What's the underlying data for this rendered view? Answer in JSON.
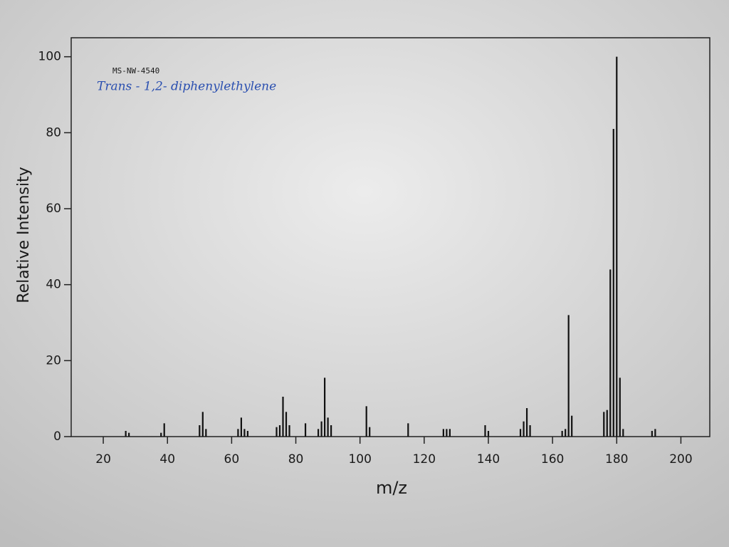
{
  "chart_data": {
    "type": "stem",
    "annotations": [
      "MS-NW-4540",
      "Trans - 1,2- diphenylethylene"
    ],
    "xlabel": "m/z",
    "ylabel": "Relative Intensity",
    "x": [
      27,
      28,
      38,
      39,
      50,
      51,
      52,
      62,
      63,
      64,
      65,
      74,
      75,
      76,
      77,
      78,
      83,
      87,
      88,
      89,
      90,
      91,
      102,
      103,
      115,
      126,
      127,
      128,
      139,
      140,
      150,
      151,
      152,
      153,
      163,
      164,
      165,
      166,
      176,
      177,
      178,
      179,
      180,
      181,
      182,
      191,
      192
    ],
    "values": [
      1.5,
      1,
      1,
      3.5,
      3,
      6.5,
      2,
      2,
      5,
      2,
      1.5,
      2.5,
      3,
      10.5,
      6.5,
      3,
      3.5,
      2,
      4,
      15.5,
      5,
      3,
      8,
      2.5,
      3.5,
      2,
      2,
      2,
      3,
      1.5,
      2,
      4,
      7.5,
      3,
      1.5,
      2,
      32,
      5.5,
      6.5,
      7,
      44,
      81,
      100,
      15.5,
      2,
      1.5,
      2
    ],
    "color": "#111111",
    "annotation_color": "#2a4fb0",
    "xlim": [
      10,
      209
    ],
    "ylim": [
      0,
      105
    ],
    "xticks": [
      20,
      40,
      60,
      80,
      100,
      120,
      140,
      160,
      180,
      200
    ],
    "yticks": [
      0,
      20,
      40,
      60,
      80,
      100
    ]
  }
}
